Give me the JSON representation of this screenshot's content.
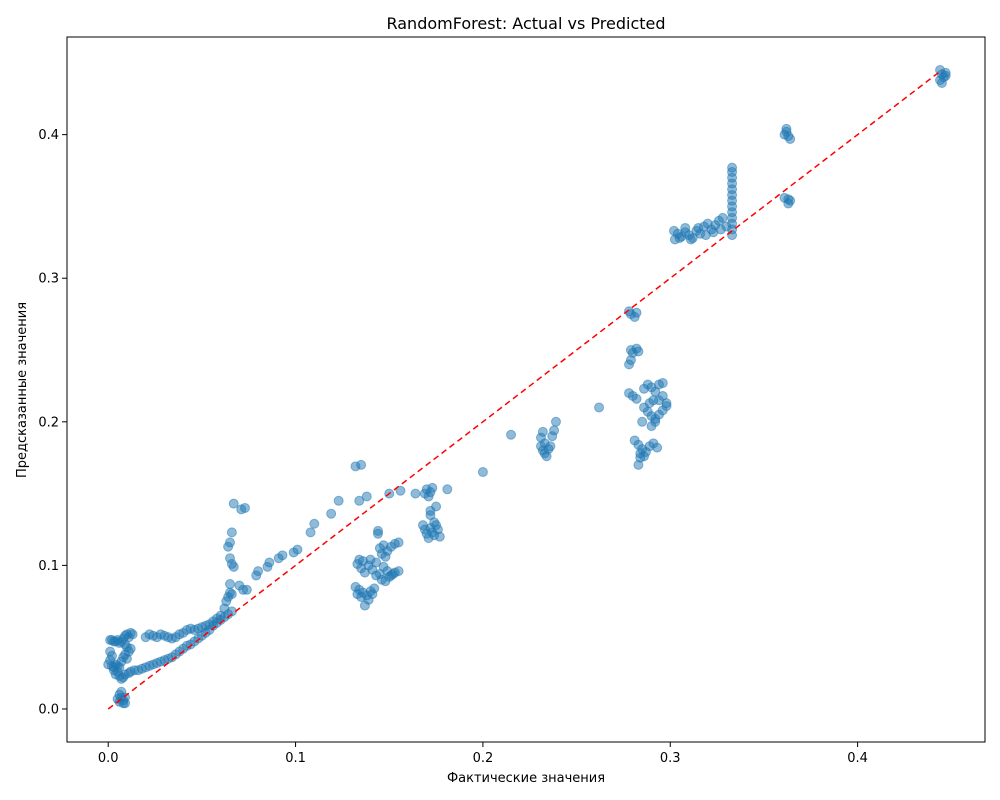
{
  "chart_data": {
    "type": "scatter",
    "title": "RandomForest: Actual vs Predicted",
    "xlabel": "Фактические значения",
    "ylabel": "Предсказанные значения",
    "xlim": [
      -0.022,
      0.468
    ],
    "ylim": [
      -0.023,
      0.468
    ],
    "x_ticks": [
      "0.0",
      "0.1",
      "0.2",
      "0.3",
      "0.4"
    ],
    "x_tick_values": [
      0.0,
      0.1,
      0.2,
      0.3,
      0.4
    ],
    "y_ticks": [
      "0.0",
      "0.1",
      "0.2",
      "0.3",
      "0.4"
    ],
    "y_tick_values": [
      0.0,
      0.1,
      0.2,
      0.3,
      0.4
    ],
    "grid": false,
    "point_color": "#1f77b4",
    "point_opacity": 0.5,
    "reference_line": {
      "style": "dashed",
      "color": "#ff0000",
      "from": [
        0.0,
        0.0
      ],
      "to": [
        0.445,
        0.445
      ]
    },
    "points": [
      [
        0.001,
        0.048
      ],
      [
        0.003,
        0.047
      ],
      [
        0.005,
        0.048
      ],
      [
        0.006,
        0.046
      ],
      [
        0.004,
        0.047
      ],
      [
        0.002,
        0.048
      ],
      [
        0.007,
        0.047
      ],
      [
        0.008,
        0.049
      ],
      [
        0.009,
        0.051
      ],
      [
        0.01,
        0.052
      ],
      [
        0.011,
        0.05
      ],
      [
        0.012,
        0.053
      ],
      [
        0.013,
        0.052
      ],
      [
        0.009,
        0.045
      ],
      [
        0.01,
        0.043
      ],
      [
        0.011,
        0.04
      ],
      [
        0.009,
        0.038
      ],
      [
        0.012,
        0.042
      ],
      [
        0.008,
        0.036
      ],
      [
        0.01,
        0.035
      ],
      [
        0.007,
        0.033
      ],
      [
        0.001,
        0.04
      ],
      [
        0.002,
        0.037
      ],
      [
        0.001,
        0.034
      ],
      [
        0.0,
        0.031
      ],
      [
        0.002,
        0.03
      ],
      [
        0.003,
        0.029
      ],
      [
        0.004,
        0.031
      ],
      [
        0.005,
        0.03
      ],
      [
        0.006,
        0.029
      ],
      [
        0.003,
        0.027
      ],
      [
        0.005,
        0.026
      ],
      [
        0.004,
        0.024
      ],
      [
        0.006,
        0.023
      ],
      [
        0.008,
        0.022
      ],
      [
        0.007,
        0.021
      ],
      [
        0.009,
        0.024
      ],
      [
        0.011,
        0.025
      ],
      [
        0.012,
        0.026
      ],
      [
        0.014,
        0.027
      ],
      [
        0.016,
        0.027
      ],
      [
        0.018,
        0.028
      ],
      [
        0.02,
        0.029
      ],
      [
        0.022,
        0.03
      ],
      [
        0.024,
        0.031
      ],
      [
        0.026,
        0.032
      ],
      [
        0.028,
        0.033
      ],
      [
        0.03,
        0.034
      ],
      [
        0.032,
        0.035
      ],
      [
        0.034,
        0.036
      ],
      [
        0.036,
        0.038
      ],
      [
        0.038,
        0.04
      ],
      [
        0.04,
        0.042
      ],
      [
        0.042,
        0.044
      ],
      [
        0.044,
        0.045
      ],
      [
        0.046,
        0.047
      ],
      [
        0.048,
        0.049
      ],
      [
        0.05,
        0.051
      ],
      [
        0.052,
        0.053
      ],
      [
        0.054,
        0.055
      ],
      [
        0.056,
        0.058
      ],
      [
        0.058,
        0.06
      ],
      [
        0.06,
        0.062
      ],
      [
        0.062,
        0.064
      ],
      [
        0.064,
        0.066
      ],
      [
        0.066,
        0.068
      ],
      [
        0.02,
        0.05
      ],
      [
        0.022,
        0.052
      ],
      [
        0.024,
        0.051
      ],
      [
        0.026,
        0.05
      ],
      [
        0.028,
        0.052
      ],
      [
        0.03,
        0.051
      ],
      [
        0.032,
        0.05
      ],
      [
        0.034,
        0.049
      ],
      [
        0.036,
        0.05
      ],
      [
        0.038,
        0.052
      ],
      [
        0.04,
        0.053
      ],
      [
        0.042,
        0.055
      ],
      [
        0.044,
        0.056
      ],
      [
        0.046,
        0.055
      ],
      [
        0.048,
        0.056
      ],
      [
        0.05,
        0.057
      ],
      [
        0.052,
        0.058
      ],
      [
        0.054,
        0.059
      ],
      [
        0.056,
        0.061
      ],
      [
        0.058,
        0.063
      ],
      [
        0.06,
        0.065
      ],
      [
        0.062,
        0.07
      ],
      [
        0.063,
        0.075
      ],
      [
        0.064,
        0.078
      ],
      [
        0.065,
        0.081
      ],
      [
        0.066,
        0.08
      ],
      [
        0.065,
        0.087
      ],
      [
        0.064,
        0.113
      ],
      [
        0.065,
        0.116
      ],
      [
        0.066,
        0.123
      ],
      [
        0.065,
        0.105
      ],
      [
        0.066,
        0.101
      ],
      [
        0.067,
        0.099
      ],
      [
        0.067,
        0.143
      ],
      [
        0.071,
        0.139
      ],
      [
        0.073,
        0.14
      ],
      [
        0.07,
        0.086
      ],
      [
        0.072,
        0.083
      ],
      [
        0.074,
        0.083
      ],
      [
        0.079,
        0.093
      ],
      [
        0.08,
        0.096
      ],
      [
        0.085,
        0.099
      ],
      [
        0.086,
        0.102
      ],
      [
        0.091,
        0.105
      ],
      [
        0.093,
        0.107
      ],
      [
        0.099,
        0.109
      ],
      [
        0.101,
        0.111
      ],
      [
        0.108,
        0.123
      ],
      [
        0.11,
        0.129
      ],
      [
        0.119,
        0.136
      ],
      [
        0.123,
        0.145
      ],
      [
        0.006,
        0.01
      ],
      [
        0.007,
        0.008
      ],
      [
        0.008,
        0.006
      ],
      [
        0.006,
        0.005
      ],
      [
        0.009,
        0.004
      ],
      [
        0.007,
        0.012
      ],
      [
        0.008,
        0.004
      ],
      [
        0.009,
        0.008
      ],
      [
        0.005,
        0.007
      ],
      [
        0.132,
        0.169
      ],
      [
        0.135,
        0.17
      ],
      [
        0.134,
        0.145
      ],
      [
        0.138,
        0.148
      ],
      [
        0.15,
        0.15
      ],
      [
        0.156,
        0.152
      ],
      [
        0.164,
        0.15
      ],
      [
        0.172,
        0.138
      ],
      [
        0.175,
        0.141
      ],
      [
        0.181,
        0.153
      ],
      [
        0.2,
        0.165
      ],
      [
        0.215,
        0.191
      ],
      [
        0.262,
        0.21
      ],
      [
        0.239,
        0.2
      ],
      [
        0.133,
        0.101
      ],
      [
        0.135,
        0.098
      ],
      [
        0.137,
        0.095
      ],
      [
        0.139,
        0.1
      ],
      [
        0.141,
        0.097
      ],
      [
        0.143,
        0.102
      ],
      [
        0.145,
        0.094
      ],
      [
        0.147,
        0.099
      ],
      [
        0.149,
        0.096
      ],
      [
        0.151,
        0.093
      ],
      [
        0.153,
        0.095
      ],
      [
        0.155,
        0.096
      ],
      [
        0.134,
        0.104
      ],
      [
        0.136,
        0.103
      ],
      [
        0.14,
        0.104
      ],
      [
        0.144,
        0.122
      ],
      [
        0.144,
        0.124
      ],
      [
        0.145,
        0.112
      ],
      [
        0.147,
        0.114
      ],
      [
        0.149,
        0.11
      ],
      [
        0.151,
        0.113
      ],
      [
        0.153,
        0.115
      ],
      [
        0.155,
        0.116
      ],
      [
        0.146,
        0.108
      ],
      [
        0.148,
        0.106
      ],
      [
        0.15,
        0.092
      ],
      [
        0.152,
        0.094
      ],
      [
        0.132,
        0.085
      ],
      [
        0.134,
        0.083
      ],
      [
        0.136,
        0.081
      ],
      [
        0.138,
        0.079
      ],
      [
        0.14,
        0.082
      ],
      [
        0.142,
        0.084
      ],
      [
        0.133,
        0.08
      ],
      [
        0.135,
        0.078
      ],
      [
        0.137,
        0.072
      ],
      [
        0.139,
        0.076
      ],
      [
        0.141,
        0.08
      ],
      [
        0.143,
        0.093
      ],
      [
        0.146,
        0.09
      ],
      [
        0.148,
        0.089
      ],
      [
        0.168,
        0.128
      ],
      [
        0.169,
        0.125
      ],
      [
        0.17,
        0.122
      ],
      [
        0.171,
        0.119
      ],
      [
        0.172,
        0.126
      ],
      [
        0.173,
        0.123
      ],
      [
        0.174,
        0.121
      ],
      [
        0.175,
        0.128
      ],
      [
        0.176,
        0.125
      ],
      [
        0.177,
        0.12
      ],
      [
        0.169,
        0.15
      ],
      [
        0.17,
        0.153
      ],
      [
        0.171,
        0.148
      ],
      [
        0.172,
        0.151
      ],
      [
        0.173,
        0.154
      ],
      [
        0.174,
        0.13
      ],
      [
        0.172,
        0.135
      ],
      [
        0.231,
        0.183
      ],
      [
        0.232,
        0.18
      ],
      [
        0.233,
        0.178
      ],
      [
        0.234,
        0.176
      ],
      [
        0.235,
        0.181
      ],
      [
        0.236,
        0.183
      ],
      [
        0.233,
        0.185
      ],
      [
        0.231,
        0.189
      ],
      [
        0.232,
        0.193
      ],
      [
        0.237,
        0.19
      ],
      [
        0.238,
        0.194
      ],
      [
        0.278,
        0.277
      ],
      [
        0.279,
        0.275
      ],
      [
        0.281,
        0.273
      ],
      [
        0.282,
        0.276
      ],
      [
        0.279,
        0.25
      ],
      [
        0.28,
        0.248
      ],
      [
        0.282,
        0.251
      ],
      [
        0.283,
        0.249
      ],
      [
        0.279,
        0.243
      ],
      [
        0.278,
        0.24
      ],
      [
        0.278,
        0.22
      ],
      [
        0.28,
        0.218
      ],
      [
        0.282,
        0.216
      ],
      [
        0.281,
        0.187
      ],
      [
        0.283,
        0.184
      ],
      [
        0.285,
        0.181
      ],
      [
        0.287,
        0.179
      ],
      [
        0.289,
        0.183
      ],
      [
        0.291,
        0.185
      ],
      [
        0.293,
        0.182
      ],
      [
        0.284,
        0.178
      ],
      [
        0.286,
        0.176
      ],
      [
        0.283,
        0.17
      ],
      [
        0.284,
        0.175
      ],
      [
        0.285,
        0.2
      ],
      [
        0.286,
        0.223
      ],
      [
        0.288,
        0.226
      ],
      [
        0.29,
        0.224
      ],
      [
        0.292,
        0.221
      ],
      [
        0.294,
        0.226
      ],
      [
        0.296,
        0.227
      ],
      [
        0.286,
        0.21
      ],
      [
        0.288,
        0.207
      ],
      [
        0.29,
        0.204
      ],
      [
        0.292,
        0.202
      ],
      [
        0.294,
        0.205
      ],
      [
        0.296,
        0.208
      ],
      [
        0.298,
        0.211
      ],
      [
        0.29,
        0.197
      ],
      [
        0.292,
        0.2
      ],
      [
        0.294,
        0.215
      ],
      [
        0.296,
        0.218
      ],
      [
        0.298,
        0.213
      ],
      [
        0.289,
        0.213
      ],
      [
        0.291,
        0.215
      ],
      [
        0.302,
        0.333
      ],
      [
        0.304,
        0.331
      ],
      [
        0.306,
        0.329
      ],
      [
        0.308,
        0.332
      ],
      [
        0.31,
        0.33
      ],
      [
        0.312,
        0.328
      ],
      [
        0.314,
        0.333
      ],
      [
        0.316,
        0.331
      ],
      [
        0.318,
        0.336
      ],
      [
        0.32,
        0.338
      ],
      [
        0.322,
        0.334
      ],
      [
        0.324,
        0.337
      ],
      [
        0.326,
        0.34
      ],
      [
        0.328,
        0.342
      ],
      [
        0.3025,
        0.327
      ],
      [
        0.305,
        0.328
      ],
      [
        0.308,
        0.335
      ],
      [
        0.311,
        0.327
      ],
      [
        0.315,
        0.335
      ],
      [
        0.319,
        0.33
      ],
      [
        0.323,
        0.332
      ],
      [
        0.327,
        0.334
      ],
      [
        0.33,
        0.336
      ],
      [
        0.333,
        0.33
      ],
      [
        0.333,
        0.334
      ],
      [
        0.333,
        0.338
      ],
      [
        0.333,
        0.342
      ],
      [
        0.333,
        0.346
      ],
      [
        0.333,
        0.35
      ],
      [
        0.333,
        0.354
      ],
      [
        0.333,
        0.358
      ],
      [
        0.333,
        0.362
      ],
      [
        0.333,
        0.366
      ],
      [
        0.333,
        0.37
      ],
      [
        0.333,
        0.374
      ],
      [
        0.333,
        0.377
      ],
      [
        0.362,
        0.402
      ],
      [
        0.363,
        0.399
      ],
      [
        0.364,
        0.397
      ],
      [
        0.362,
        0.404
      ],
      [
        0.361,
        0.4
      ],
      [
        0.363,
        0.355
      ],
      [
        0.361,
        0.356
      ],
      [
        0.364,
        0.354
      ],
      [
        0.363,
        0.352
      ],
      [
        0.444,
        0.445
      ],
      [
        0.445,
        0.442
      ],
      [
        0.446,
        0.44
      ],
      [
        0.447,
        0.443
      ],
      [
        0.444,
        0.438
      ],
      [
        0.445,
        0.436
      ],
      [
        0.447,
        0.441
      ]
    ]
  }
}
